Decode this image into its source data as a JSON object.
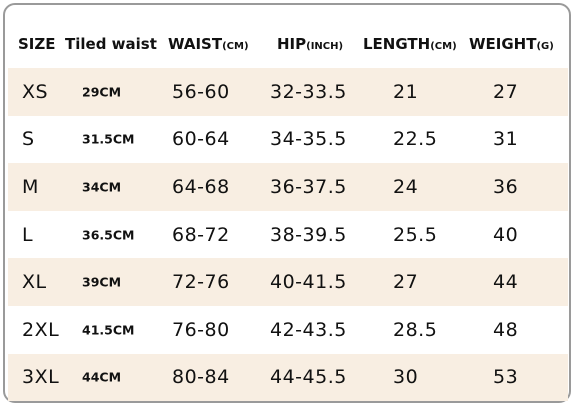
{
  "table": {
    "header": [
      {
        "label": "SIZE"
      },
      {
        "label": "Tiled waist"
      },
      {
        "label": "WAIST",
        "unit": "(CM)"
      },
      {
        "label": "HIP",
        "unit": "(INCH)"
      },
      {
        "label": "LENGTH",
        "unit": "(CM)"
      },
      {
        "label": "WEIGHT",
        "unit": "(G)"
      }
    ],
    "rows": [
      [
        "XS",
        "29CM",
        "56-60",
        "32-33.5",
        "21",
        "27"
      ],
      [
        "S",
        "31.5CM",
        "60-64",
        "34-35.5",
        "22.5",
        "31"
      ],
      [
        "M",
        "34CM",
        "64-68",
        "36-37.5",
        "24",
        "36"
      ],
      [
        "L",
        "36.5CM",
        "68-72",
        "38-39.5",
        "25.5",
        "40"
      ],
      [
        "XL",
        "39CM",
        "72-76",
        "40-41.5",
        "27",
        "44"
      ],
      [
        "2XL",
        "41.5CM",
        "76-80",
        "42-43.5",
        "28.5",
        "48"
      ],
      [
        "3XL",
        "44CM",
        "80-84",
        "44-45.5",
        "30",
        "53"
      ]
    ]
  }
}
